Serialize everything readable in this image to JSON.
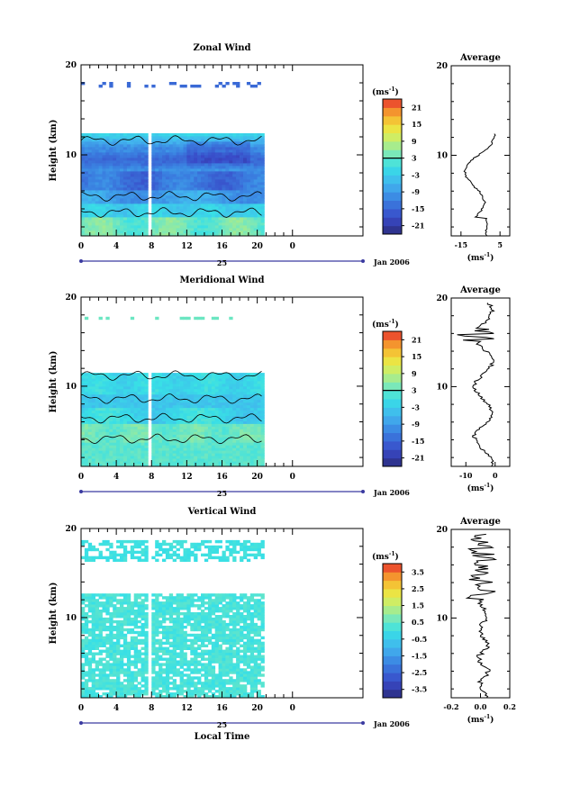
{
  "chart_data": [
    {
      "type": "heatmap",
      "title": "Zonal Wind",
      "ylabel": "Height (km)",
      "ylim": [
        1,
        20
      ],
      "y_ticks": [
        "10",
        "20"
      ],
      "xlim": [
        0,
        32
      ],
      "x_ticks": [
        "0",
        "4",
        "8",
        "12",
        "16",
        "20",
        "0"
      ],
      "date_label": "25",
      "month_label": "Jan 2006",
      "colorbar": {
        "unit": "(ms",
        "unit_exp": "-1",
        "unit_close": ")",
        "ticks": [
          "21",
          "15",
          "9",
          "3",
          "-3",
          "-9",
          "-15",
          "-21"
        ],
        "range": [
          -24,
          24
        ]
      },
      "profile": {
        "title": "Average",
        "xlim": [
          -20,
          10
        ],
        "x_ticks": [
          "-15",
          "5"
        ],
        "ylim": [
          1,
          20
        ],
        "y_ticks": [
          "10",
          "20"
        ],
        "xlabel": "(ms",
        "xlabel_exp": "-1",
        "xlabel_close": ")"
      }
    },
    {
      "type": "heatmap",
      "title": "Meridional Wind",
      "ylabel": "Height (km)",
      "ylim": [
        1,
        20
      ],
      "y_ticks": [
        "10",
        "20"
      ],
      "xlim": [
        0,
        32
      ],
      "x_ticks": [
        "0",
        "4",
        "8",
        "12",
        "16",
        "20",
        "0"
      ],
      "date_label": "25",
      "month_label": "Jan 2006",
      "colorbar": {
        "unit": "(ms",
        "unit_exp": "-1",
        "unit_close": ")",
        "ticks": [
          "21",
          "15",
          "9",
          "3",
          "-3",
          "-9",
          "-15",
          "-21"
        ],
        "range": [
          -24,
          24
        ]
      },
      "profile": {
        "title": "Average",
        "xlim": [
          -15,
          5
        ],
        "x_ticks": [
          "-10",
          "0"
        ],
        "ylim": [
          1,
          20
        ],
        "y_ticks": [
          "10",
          "20"
        ],
        "xlabel": "(ms",
        "xlabel_exp": "-1",
        "xlabel_close": ")"
      }
    },
    {
      "type": "heatmap",
      "title": "Vertical Wind",
      "ylabel": "Height (km)",
      "ylim": [
        1,
        20
      ],
      "y_ticks": [
        "10",
        "20"
      ],
      "xlim": [
        0,
        32
      ],
      "x_ticks": [
        "0",
        "4",
        "8",
        "12",
        "16",
        "20",
        "0"
      ],
      "date_label": "25",
      "month_label": "Jan 2006",
      "xlabel": "Local Time",
      "colorbar": {
        "unit": "(ms",
        "unit_exp": "-1",
        "unit_close": ")",
        "ticks": [
          "3.5",
          "2.5",
          "1.5",
          "0.5",
          "-0.5",
          "-1.5",
          "-2.5",
          "-3.5"
        ],
        "range": [
          -4,
          4
        ]
      },
      "profile": {
        "title": "Average",
        "xlim": [
          -0.2,
          0.2
        ],
        "x_ticks": [
          "-0.2",
          "0.0",
          "0.2"
        ],
        "ylim": [
          1,
          20
        ],
        "y_ticks": [
          "10",
          "20"
        ],
        "xlabel": "(ms",
        "xlabel_exp": "-1",
        "xlabel_close": ")"
      }
    }
  ]
}
